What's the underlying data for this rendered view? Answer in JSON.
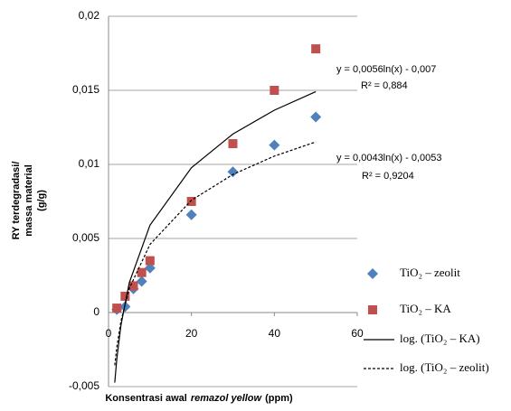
{
  "chart_data": {
    "type": "scatter",
    "y_label": [
      "RY terdegradasi/",
      "massa material",
      "(g/g)"
    ],
    "x_label": [
      "Konsentrasi awal",
      "remazol yellow",
      "(ppm)"
    ],
    "xlim": [
      0,
      60
    ],
    "xticks": [
      0,
      20,
      40,
      60
    ],
    "ylim": [
      -0.005,
      0.02
    ],
    "yticks": [
      {
        "value": -0.005,
        "label": "-0,005"
      },
      0,
      {
        "value": 0.005,
        "label": "0,005"
      },
      {
        "value": 0.01,
        "label": "0,01"
      },
      {
        "value": 0.015,
        "label": "0,015"
      },
      {
        "value": 0.02,
        "label": "0,02"
      }
    ],
    "grid": true,
    "series": [
      {
        "name": "TiO₂ – zeolit",
        "color": "#4f81bd",
        "marker": "diamond",
        "x": [
          2,
          4,
          6,
          8,
          10,
          20,
          30,
          40,
          50
        ],
        "values": [
          0.0002,
          0.0004,
          0.0016,
          0.0021,
          0.003,
          0.0066,
          0.0095,
          0.0113,
          0.0132
        ]
      },
      {
        "name": "TiO₂ – KA",
        "color": "#c0504d",
        "marker": "square",
        "x": [
          2,
          4,
          6,
          8,
          10,
          20,
          30,
          40,
          50
        ],
        "values": [
          0.0003,
          0.0011,
          0.0018,
          0.0027,
          0.0035,
          0.0075,
          0.0114,
          0.015,
          0.0178
        ]
      },
      {
        "name": "log. (TiO₂ – KA)",
        "color": "#000000",
        "line": "solid",
        "x": [
          1.5,
          2,
          3,
          5,
          10,
          20,
          30,
          40,
          50
        ],
        "values": [
          -0.00473,
          -0.00312,
          -0.00085,
          0.00201,
          0.0059,
          0.00978,
          0.01205,
          0.01366,
          0.01491
        ]
      },
      {
        "name": "log. (TiO₂ – zeolit)",
        "color": "#000000",
        "line": "dashed",
        "x": [
          1.5,
          2,
          3,
          5,
          10,
          20,
          30,
          40,
          50
        ],
        "values": [
          -0.00356,
          -0.00232,
          -0.00057,
          0.00162,
          0.0046,
          0.00758,
          0.00932,
          0.01056,
          0.01152
        ]
      }
    ],
    "annotations": [
      "y = 0,0056ln(x) - 0,007",
      "R² = 0,884",
      "y = 0,0043ln(x) - 0,0053",
      "R² = 0,9204"
    ]
  }
}
